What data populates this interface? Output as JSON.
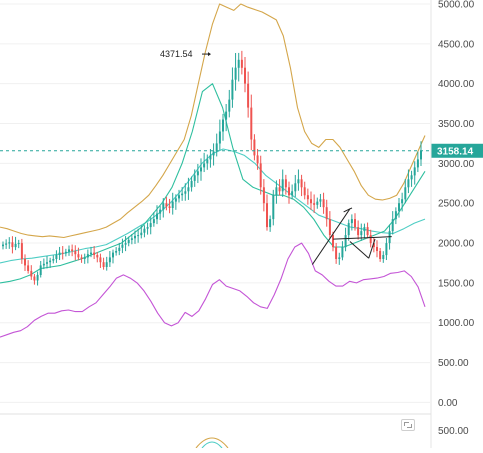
{
  "chart_data": {
    "type": "candlestick",
    "title": "",
    "xlabel": "",
    "ylabel": "",
    "ylim": [
      -120,
      5050
    ],
    "y_ticks": [
      "5000.00",
      "4500.00",
      "4000.00",
      "3500.00",
      "3000.00",
      "2500.00",
      "2000.00",
      "1500.00",
      "1000.00",
      "500.00",
      "0.00"
    ],
    "y_tick_values": [
      5000,
      4500,
      4000,
      3500,
      3000,
      2500,
      2000,
      1500,
      1000,
      500,
      0
    ],
    "last_price": 3158.14,
    "last_price_label": "3158.14",
    "high_marker": {
      "value": 4371.54,
      "label": "4371.54"
    },
    "close_series": [
      1980,
      1995,
      2010,
      1950,
      1990,
      2000,
      1800,
      1720,
      1650,
      1580,
      1530,
      1600,
      1720,
      1740,
      1760,
      1780,
      1800,
      1850,
      1880,
      1870,
      1890,
      1920,
      1900,
      1860,
      1820,
      1800,
      1820,
      1860,
      1880,
      1850,
      1820,
      1760,
      1700,
      1760,
      1820,
      1880,
      1900,
      1940,
      1980,
      2000,
      2040,
      2060,
      2090,
      2100,
      2130,
      2180,
      2200,
      2250,
      2300,
      2370,
      2420,
      2500,
      2460,
      2440,
      2520,
      2560,
      2600,
      2620,
      2650,
      2700,
      2780,
      2850,
      2900,
      2950,
      3000,
      3050,
      3100,
      3150,
      3250,
      3400,
      3550,
      3650,
      3800,
      4050,
      4200,
      4300,
      4200,
      4000,
      3700,
      3300,
      3100,
      3000,
      2700,
      2500,
      2200,
      2300,
      2600,
      2700,
      2650,
      2800,
      2700,
      2600,
      2650,
      2750,
      2800,
      2700,
      2600,
      2550,
      2500,
      2480,
      2520,
      2550,
      2450,
      2300,
      2100,
      1950,
      1800,
      1820,
      1950,
      2100,
      2250,
      2300,
      2200,
      2100,
      2150,
      2200,
      2100,
      2000,
      1950,
      1900,
      1800,
      1850,
      2000,
      2150,
      2300,
      2400,
      2500,
      2550,
      2700,
      2800,
      2850,
      2950,
      3050,
      3158
    ],
    "bollinger_upper": [
      2200,
      2180,
      2150,
      2120,
      2100,
      2090,
      2080,
      2090,
      2080,
      2070,
      2090,
      2110,
      2130,
      2150,
      2170,
      2200,
      2250,
      2300,
      2380,
      2450,
      2520,
      2600,
      2720,
      2850,
      3000,
      3150,
      3300,
      3600,
      4000,
      4400,
      4750,
      5000,
      4960,
      4920,
      5000,
      4960,
      4930,
      4900,
      4850,
      4800,
      4600,
      4200,
      3700,
      3400,
      3250,
      3200,
      3300,
      3300,
      3200,
      3050,
      2900,
      2720,
      2600,
      2550,
      2540,
      2560,
      2600,
      2750,
      2950,
      3150,
      3350
    ],
    "bollinger_lower": [
      820,
      850,
      880,
      900,
      950,
      1030,
      1080,
      1120,
      1120,
      1150,
      1160,
      1140,
      1140,
      1200,
      1250,
      1350,
      1450,
      1560,
      1600,
      1560,
      1500,
      1400,
      1270,
      1120,
      1000,
      960,
      1000,
      1130,
      1080,
      1150,
      1300,
      1480,
      1540,
      1460,
      1430,
      1400,
      1330,
      1250,
      1200,
      1180,
      1350,
      1550,
      1800,
      1950,
      2000,
      1870,
      1650,
      1600,
      1520,
      1460,
      1460,
      1520,
      1500,
      1540,
      1550,
      1560,
      1580,
      1620,
      1630,
      1650,
      1580,
      1450,
      1200
    ],
    "ma_slow": [
      1750,
      1780,
      1800,
      1810,
      1830,
      1850,
      1870,
      1900,
      1930,
      1950,
      1980,
      2050,
      2120,
      2200,
      2280,
      2380,
      2500,
      2650,
      2820,
      3000,
      3120,
      3180,
      3150,
      3100,
      3000,
      2850,
      2750,
      2650,
      2550,
      2450,
      2350,
      2300,
      2250,
      2200,
      2180,
      2150,
      2130,
      2120,
      2180,
      2250,
      2300
    ],
    "ma_fast": [
      1500,
      1520,
      1550,
      1600,
      1680,
      1700,
      1720,
      1760,
      1800,
      1850,
      1900,
      1950,
      2000,
      2100,
      2200,
      2350,
      2500,
      2700,
      3000,
      3400,
      3900,
      4000,
      3700,
      3200,
      2800,
      2700,
      2650,
      2600,
      2600,
      2550,
      2450,
      2300,
      2100,
      1950,
      1950,
      2000,
      2050,
      2100,
      2150,
      2300,
      2500,
      2700,
      2900
    ]
  },
  "volume_panel": {
    "axis_label": "500.00",
    "axis_value": 500
  },
  "colors": {
    "up": "#26a69a",
    "down": "#ef5350",
    "bollinger": "#d4a64a",
    "ma_slow": "#4ecdc4",
    "ma_fast": "#2fbf9f",
    "oscillator": "#c455d6",
    "price_line": "#26a69a",
    "drawing": "#222222",
    "grid": "#f0f0f0"
  },
  "icons": {
    "fullscreen": "fullscreen-icon"
  }
}
